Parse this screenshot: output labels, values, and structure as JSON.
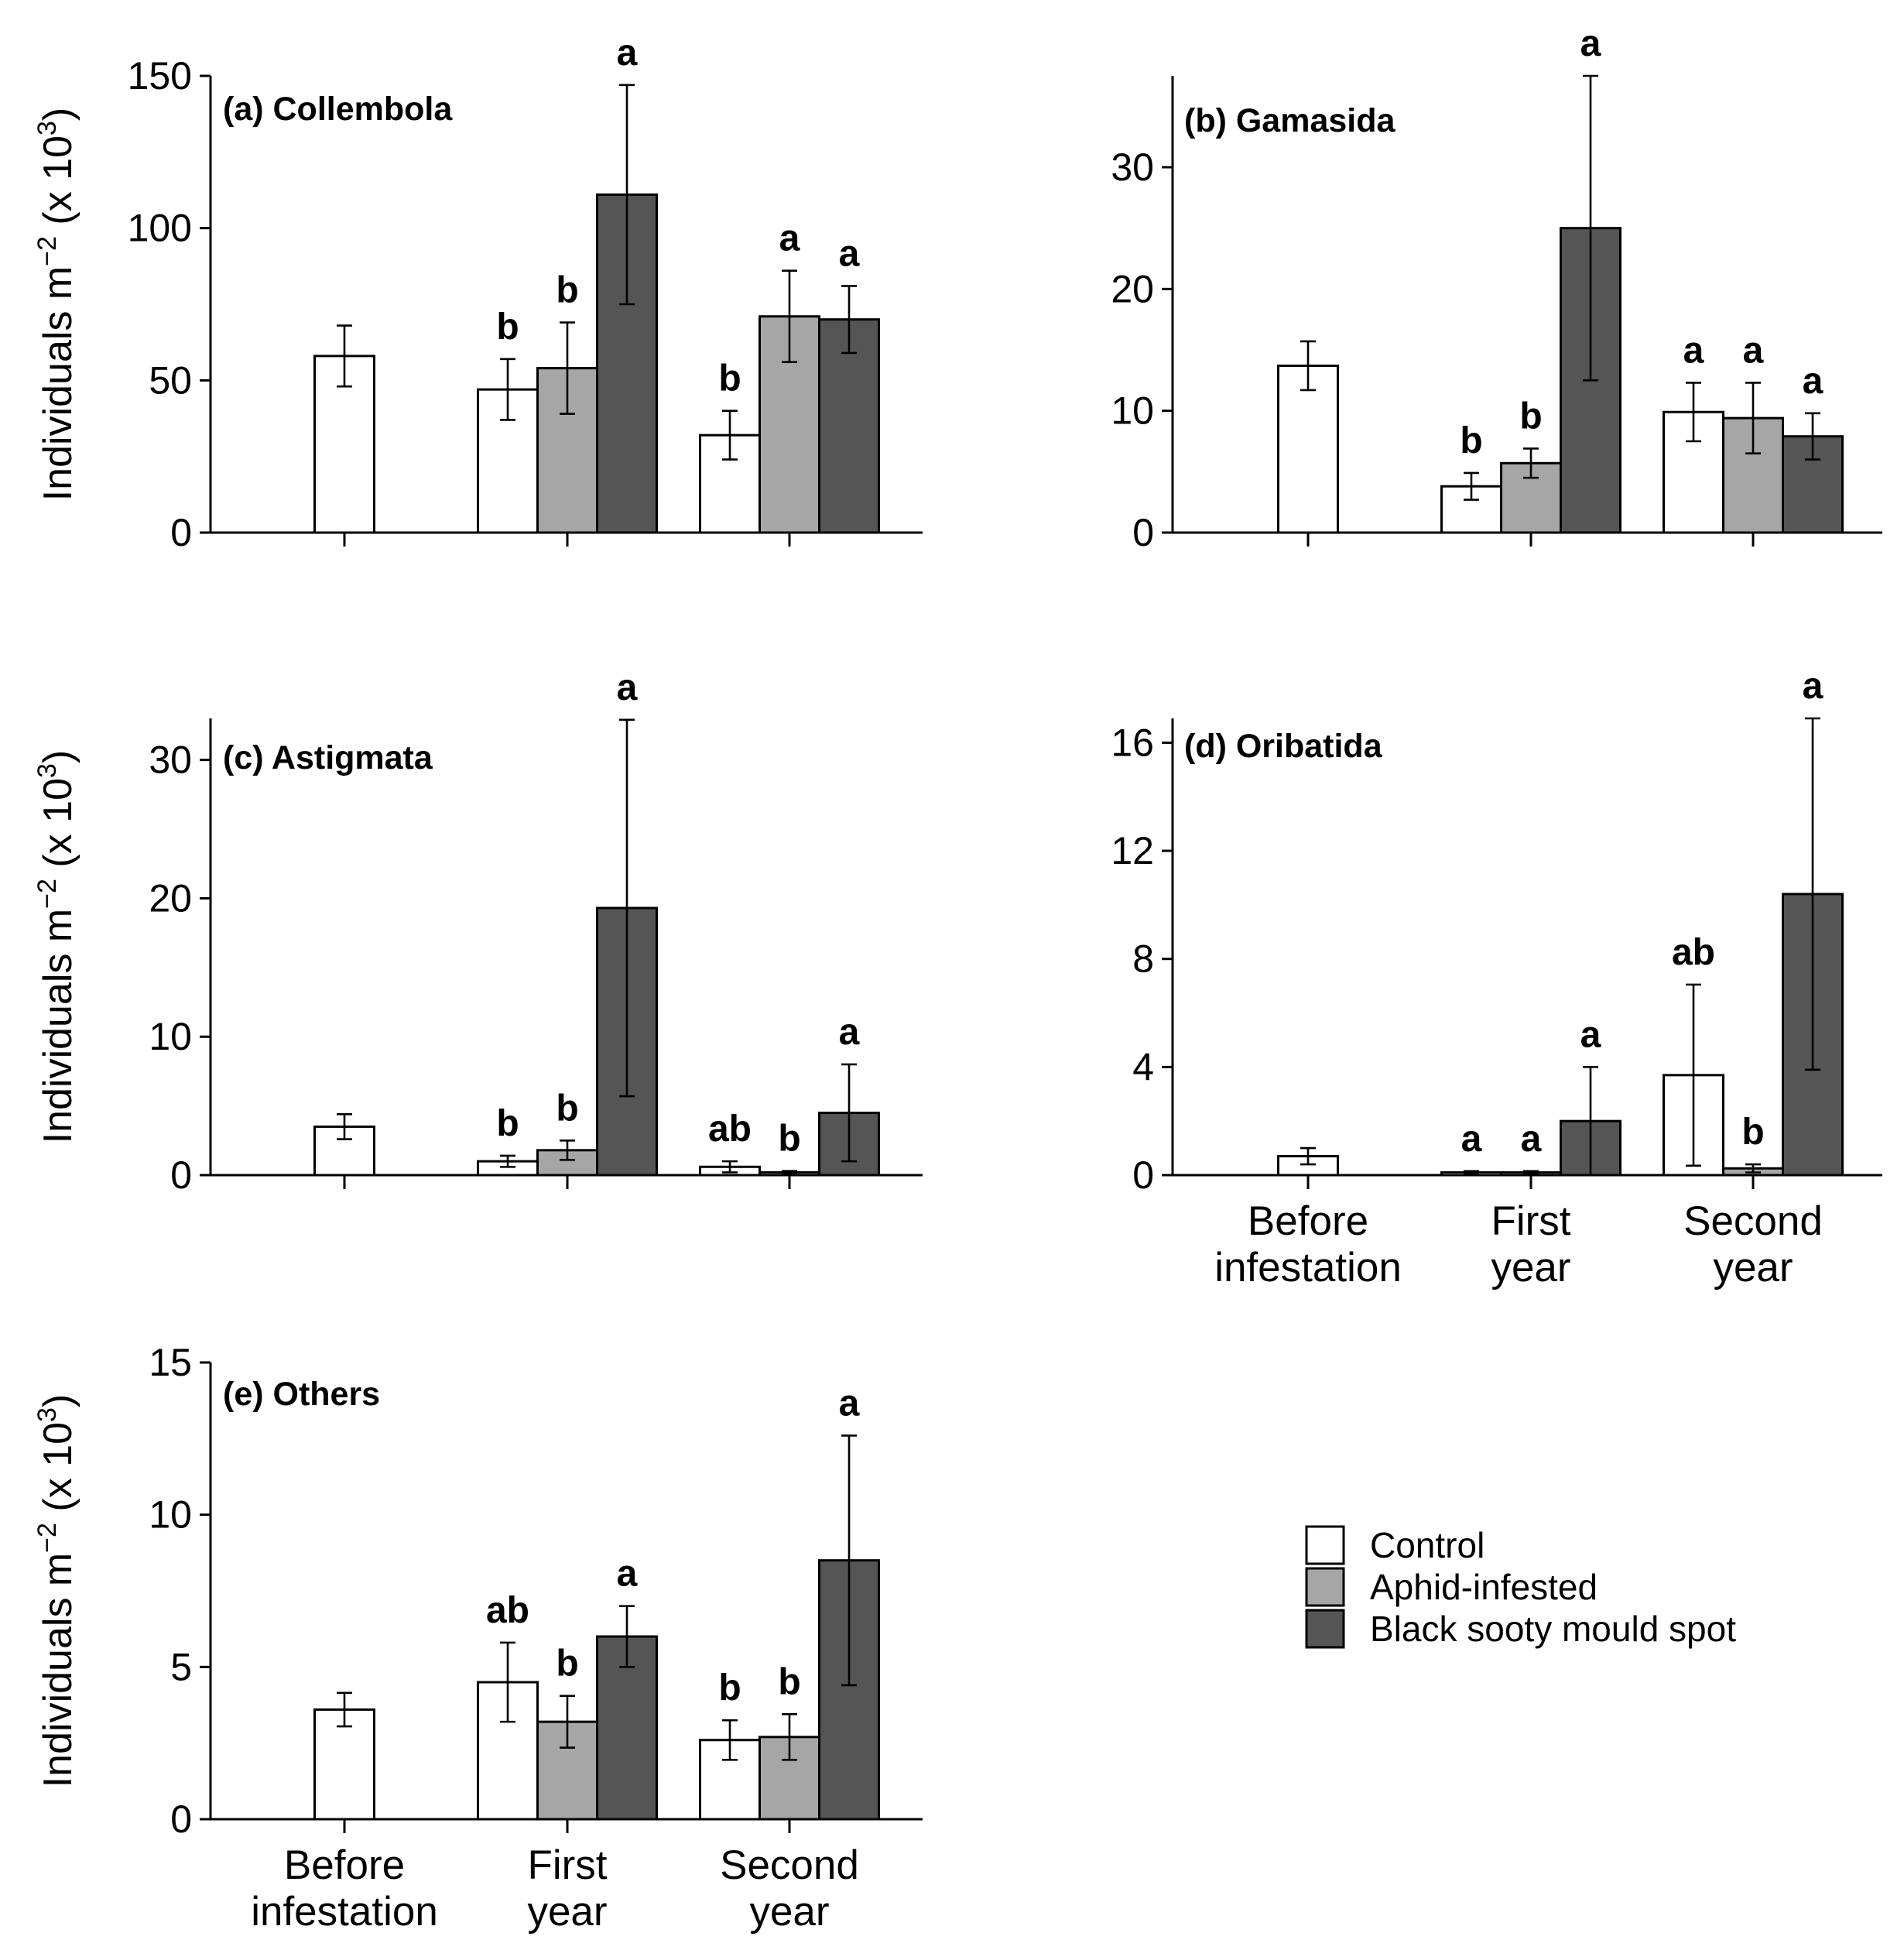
{
  "chart_data": {
    "type": "bar",
    "colors": {
      "Control": "#ffffff",
      "Aphid-infested": "#a6a6a6",
      "Black sooty mould spot": "#555555"
    },
    "legend": {
      "entries": [
        "Control",
        "Aphid-infested",
        "Black sooty mould spot"
      ],
      "position": "bottom-right"
    },
    "ylabel": {
      "main": "Individuals  m",
      "exp": "−2",
      "mid": " (x 10",
      "exp2": "3",
      "end": ")"
    },
    "panels": [
      {
        "title": "(a) Collembola",
        "ylim": [
          0,
          150
        ],
        "ticks": [
          "0",
          "50",
          "100",
          "150"
        ],
        "show_x_labels": false,
        "groups": [
          {
            "category": "Before infestation",
            "bars": [
              {
                "series": "Control",
                "value": 58,
                "err": 10,
                "letter": ""
              }
            ]
          },
          {
            "category": "First year",
            "bars": [
              {
                "series": "Control",
                "value": 47,
                "err": 10,
                "letter": "b"
              },
              {
                "series": "Aphid-infested",
                "value": 54,
                "err": 15,
                "letter": "b"
              },
              {
                "series": "Black sooty mould spot",
                "value": 111,
                "err": 36,
                "letter": "a"
              }
            ]
          },
          {
            "category": "Second year",
            "bars": [
              {
                "series": "Control",
                "value": 32,
                "err": 8,
                "letter": "b"
              },
              {
                "series": "Aphid-infested",
                "value": 71,
                "err": 15,
                "letter": "a"
              },
              {
                "series": "Black sooty mould spot",
                "value": 70,
                "err": 11,
                "letter": "a"
              }
            ]
          }
        ]
      },
      {
        "title": "(b) Gamasida",
        "ylim": [
          0,
          37.5
        ],
        "ticks": [
          "0",
          "10",
          "20",
          "30"
        ],
        "show_x_labels": false,
        "groups": [
          {
            "category": "Before infestation",
            "bars": [
              {
                "series": "Control",
                "value": 13.7,
                "err": 2,
                "letter": ""
              }
            ]
          },
          {
            "category": "First year",
            "bars": [
              {
                "series": "Control",
                "value": 3.8,
                "err": 1.1,
                "letter": "b"
              },
              {
                "series": "Aphid-infested",
                "value": 5.7,
                "err": 1.2,
                "letter": "b"
              },
              {
                "series": "Black sooty mould spot",
                "value": 25,
                "err": 12.5,
                "letter": "a"
              }
            ]
          },
          {
            "category": "Second year",
            "bars": [
              {
                "series": "Control",
                "value": 9.9,
                "err": 2.4,
                "letter": "a"
              },
              {
                "series": "Aphid-infested",
                "value": 9.4,
                "err": 2.9,
                "letter": "a"
              },
              {
                "series": "Black sooty mould spot",
                "value": 7.9,
                "err": 1.9,
                "letter": "a"
              }
            ]
          }
        ]
      },
      {
        "title": "(c) Astigmata",
        "ylim": [
          0,
          33
        ],
        "ticks": [
          "0",
          "10",
          "20",
          "30"
        ],
        "show_x_labels": false,
        "groups": [
          {
            "category": "Before infestation",
            "bars": [
              {
                "series": "Control",
                "value": 3.5,
                "err": 0.9,
                "letter": ""
              }
            ]
          },
          {
            "category": "First year",
            "bars": [
              {
                "series": "Control",
                "value": 1,
                "err": 0.4,
                "letter": "b"
              },
              {
                "series": "Aphid-infested",
                "value": 1.8,
                "err": 0.7,
                "letter": "b"
              },
              {
                "series": "Black sooty mould spot",
                "value": 19.3,
                "err": 13.6,
                "letter": "a"
              }
            ]
          },
          {
            "category": "Second year",
            "bars": [
              {
                "series": "Control",
                "value": 0.6,
                "err": 0.4,
                "letter": "ab"
              },
              {
                "series": "Aphid-infested",
                "value": 0.2,
                "err": 0.1,
                "letter": "b"
              },
              {
                "series": "Black sooty mould spot",
                "value": 4.5,
                "err": 3.5,
                "letter": "a"
              }
            ]
          }
        ]
      },
      {
        "title": "(d) Oribatida",
        "ylim": [
          0,
          16.9
        ],
        "ticks": [
          "0",
          "4",
          "8",
          "12",
          "16"
        ],
        "show_x_labels": true,
        "groups": [
          {
            "category": "Before infestation",
            "bars": [
              {
                "series": "Control",
                "value": 0.7,
                "err": 0.3,
                "letter": ""
              }
            ]
          },
          {
            "category": "First year",
            "bars": [
              {
                "series": "Control",
                "value": 0.1,
                "err": 0.05,
                "letter": "a"
              },
              {
                "series": "Aphid-infested",
                "value": 0.1,
                "err": 0.05,
                "letter": "a"
              },
              {
                "series": "Black sooty mould spot",
                "value": 2,
                "err": 2,
                "letter": "a"
              }
            ]
          },
          {
            "category": "Second year",
            "bars": [
              {
                "series": "Control",
                "value": 3.7,
                "err": 3.35,
                "letter": "ab"
              },
              {
                "series": "Aphid-infested",
                "value": 0.25,
                "err": 0.15,
                "letter": "b"
              },
              {
                "series": "Black sooty mould spot",
                "value": 10.4,
                "err": 6.5,
                "letter": "a"
              }
            ]
          }
        ]
      },
      {
        "title": "(e) Others",
        "ylim": [
          0,
          15
        ],
        "ticks": [
          "0",
          "5",
          "10",
          "15"
        ],
        "show_x_labels": true,
        "groups": [
          {
            "category": "Before infestation",
            "bars": [
              {
                "series": "Control",
                "value": 3.6,
                "err": 0.55,
                "letter": ""
              }
            ]
          },
          {
            "category": "First year",
            "bars": [
              {
                "series": "Control",
                "value": 4.5,
                "err": 1.3,
                "letter": "ab"
              },
              {
                "series": "Aphid-infested",
                "value": 3.2,
                "err": 0.85,
                "letter": "b"
              },
              {
                "series": "Black sooty mould spot",
                "value": 6,
                "err": 1,
                "letter": "a"
              }
            ]
          },
          {
            "category": "Second year",
            "bars": [
              {
                "series": "Control",
                "value": 2.6,
                "err": 0.65,
                "letter": "b"
              },
              {
                "series": "Aphid-infested",
                "value": 2.7,
                "err": 0.75,
                "letter": "b"
              },
              {
                "series": "Black sooty mould spot",
                "value": 8.5,
                "err": 4.1,
                "letter": "a"
              }
            ]
          }
        ]
      }
    ],
    "categories": [
      {
        "name": "Before infestation",
        "line1": "Before",
        "line2": "infestation"
      },
      {
        "name": "First year",
        "line1": "First",
        "line2": "year"
      },
      {
        "name": "Second year",
        "line1": "Second",
        "line2": "year"
      }
    ]
  }
}
